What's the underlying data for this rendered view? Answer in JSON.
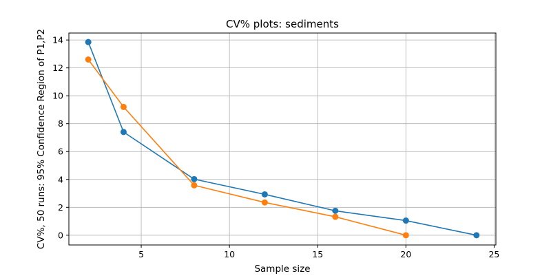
{
  "chart_data": {
    "type": "line",
    "title": "CV% plots: sediments",
    "xlabel": "Sample size",
    "ylabel": "CV%, 50 runs: 95% Confidence Region of P1,P2",
    "xlim": [
      0.9,
      25.1
    ],
    "ylim": [
      -0.7,
      14.5
    ],
    "xticks": [
      5,
      10,
      15,
      20,
      25
    ],
    "yticks": [
      0,
      2,
      4,
      6,
      8,
      10,
      12,
      14
    ],
    "grid": true,
    "markers": true,
    "series": [
      {
        "color": "#1f77b4",
        "x": [
          2,
          4,
          8,
          12,
          16,
          20,
          24
        ],
        "y": [
          13.85,
          7.4,
          4.02,
          2.93,
          1.75,
          1.05,
          0.0
        ]
      },
      {
        "color": "#ff7f0e",
        "x": [
          2,
          4,
          8,
          12,
          16,
          20
        ],
        "y": [
          12.6,
          9.2,
          3.58,
          2.35,
          1.32,
          0.0
        ]
      }
    ]
  }
}
